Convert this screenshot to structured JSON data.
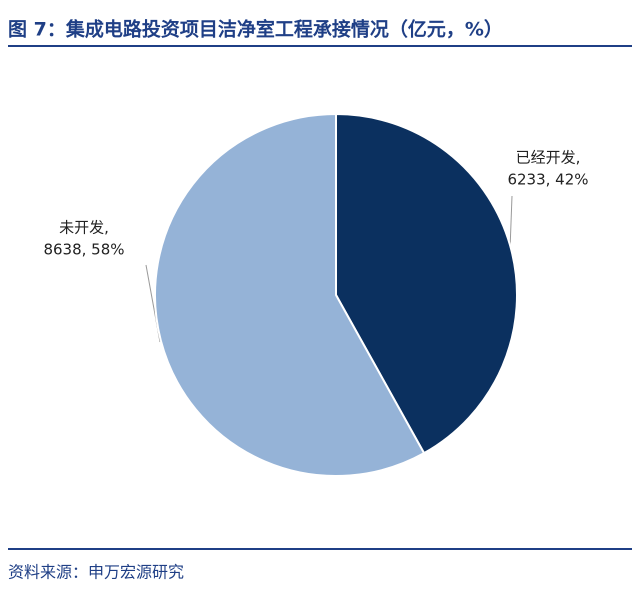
{
  "chart_data": {
    "type": "pie",
    "title": "图 7：集成电路投资项目洁净室工程承接情况（亿元，%）",
    "categories": [
      "已经开发,",
      "未开发,"
    ],
    "values": [
      6233,
      8638
    ],
    "value_labels": [
      "6233, 42%",
      "8638, 58%"
    ],
    "colors": [
      "#0b305f",
      "#95b3d7"
    ],
    "source": "资料来源：申万宏源研究"
  }
}
